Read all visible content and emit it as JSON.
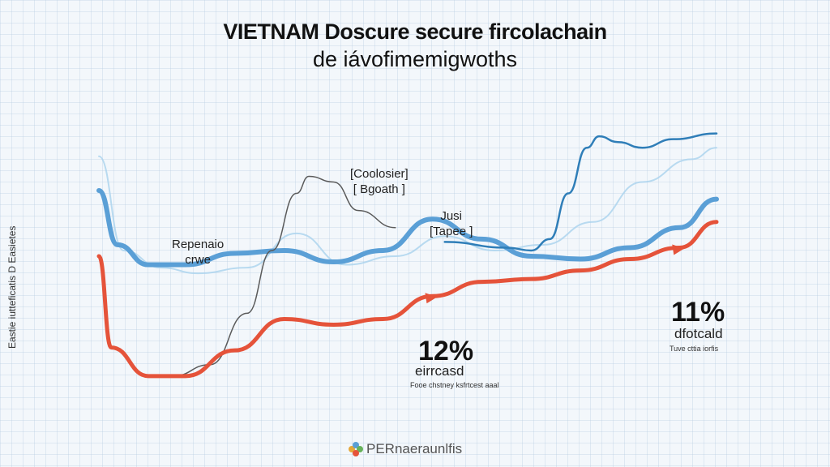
{
  "title": {
    "line1": "VIETNAM Doscure secure fircolachain",
    "line2": "de iávofimemigwoths"
  },
  "ylabel": "Eastie iutteficatis D Easietes",
  "annotations": {
    "left": [
      "Repenaio",
      "crwe"
    ],
    "mid": [
      "[Coolosier]",
      "[ Bgoath ]"
    ],
    "right": [
      "Jusi",
      "[Tapee ]"
    ]
  },
  "callouts": [
    {
      "value": "12%",
      "label": "eirrcasd",
      "note": "Fooe chstney ksfrtcest aaal"
    },
    {
      "value": "11%",
      "label": "dfotcald",
      "note": "Tuve cttia iorfis"
    }
  ],
  "brand": "PERnaeraunlfis",
  "colors": {
    "red": "#e5533a",
    "blue_main": "#5a9fd6",
    "blue_dark": "#2f7eb8",
    "blue_light": "#a9d2ee",
    "gray": "#5a5a5a"
  },
  "chart_data": {
    "type": "line",
    "title": "VIETNAM Doscure secure fircolachain de iávofimemigwoths",
    "ylabel": "Eastie iutteficatis D Easietes",
    "xlabel": "",
    "xlim": [
      0,
      100
    ],
    "ylim": [
      0,
      100
    ],
    "grid": true,
    "series": [
      {
        "color": "#e5533a",
        "x": [
          0,
          2,
          8,
          14,
          22,
          30,
          38,
          46,
          54,
          62,
          70,
          78,
          86,
          94,
          100
        ],
        "y": [
          50,
          18,
          8,
          8,
          17,
          28,
          26,
          28,
          36,
          41,
          42,
          45,
          49,
          53,
          62
        ]
      },
      {
        "color": "#5a9fd6",
        "x": [
          0,
          3,
          8,
          14,
          22,
          30,
          38,
          46,
          54,
          62,
          70,
          78,
          86,
          94,
          100
        ],
        "y": [
          73,
          54,
          47,
          47,
          51,
          52,
          48,
          52,
          63,
          56,
          50,
          49,
          53,
          60,
          70
        ]
      },
      {
        "color": "#2f7eb8",
        "x": [
          56,
          66,
          70,
          73,
          76,
          79,
          81,
          84,
          88,
          93,
          100
        ],
        "y": [
          55,
          53,
          52,
          56,
          72,
          88,
          92,
          90,
          88,
          91,
          93
        ]
      },
      {
        "color": "#a9d2ee",
        "x": [
          0,
          4,
          10,
          16,
          24,
          32,
          40,
          48,
          56,
          64,
          72,
          80,
          88,
          96,
          100
        ],
        "y": [
          85,
          52,
          46,
          44,
          46,
          58,
          47,
          50,
          57,
          52,
          54,
          62,
          76,
          84,
          88
        ]
      },
      {
        "color": "#5a5a5a",
        "x": [
          12,
          18,
          24,
          28,
          32,
          34,
          38,
          42,
          48
        ],
        "y": [
          8,
          12,
          30,
          52,
          72,
          78,
          76,
          66,
          60
        ]
      }
    ]
  }
}
